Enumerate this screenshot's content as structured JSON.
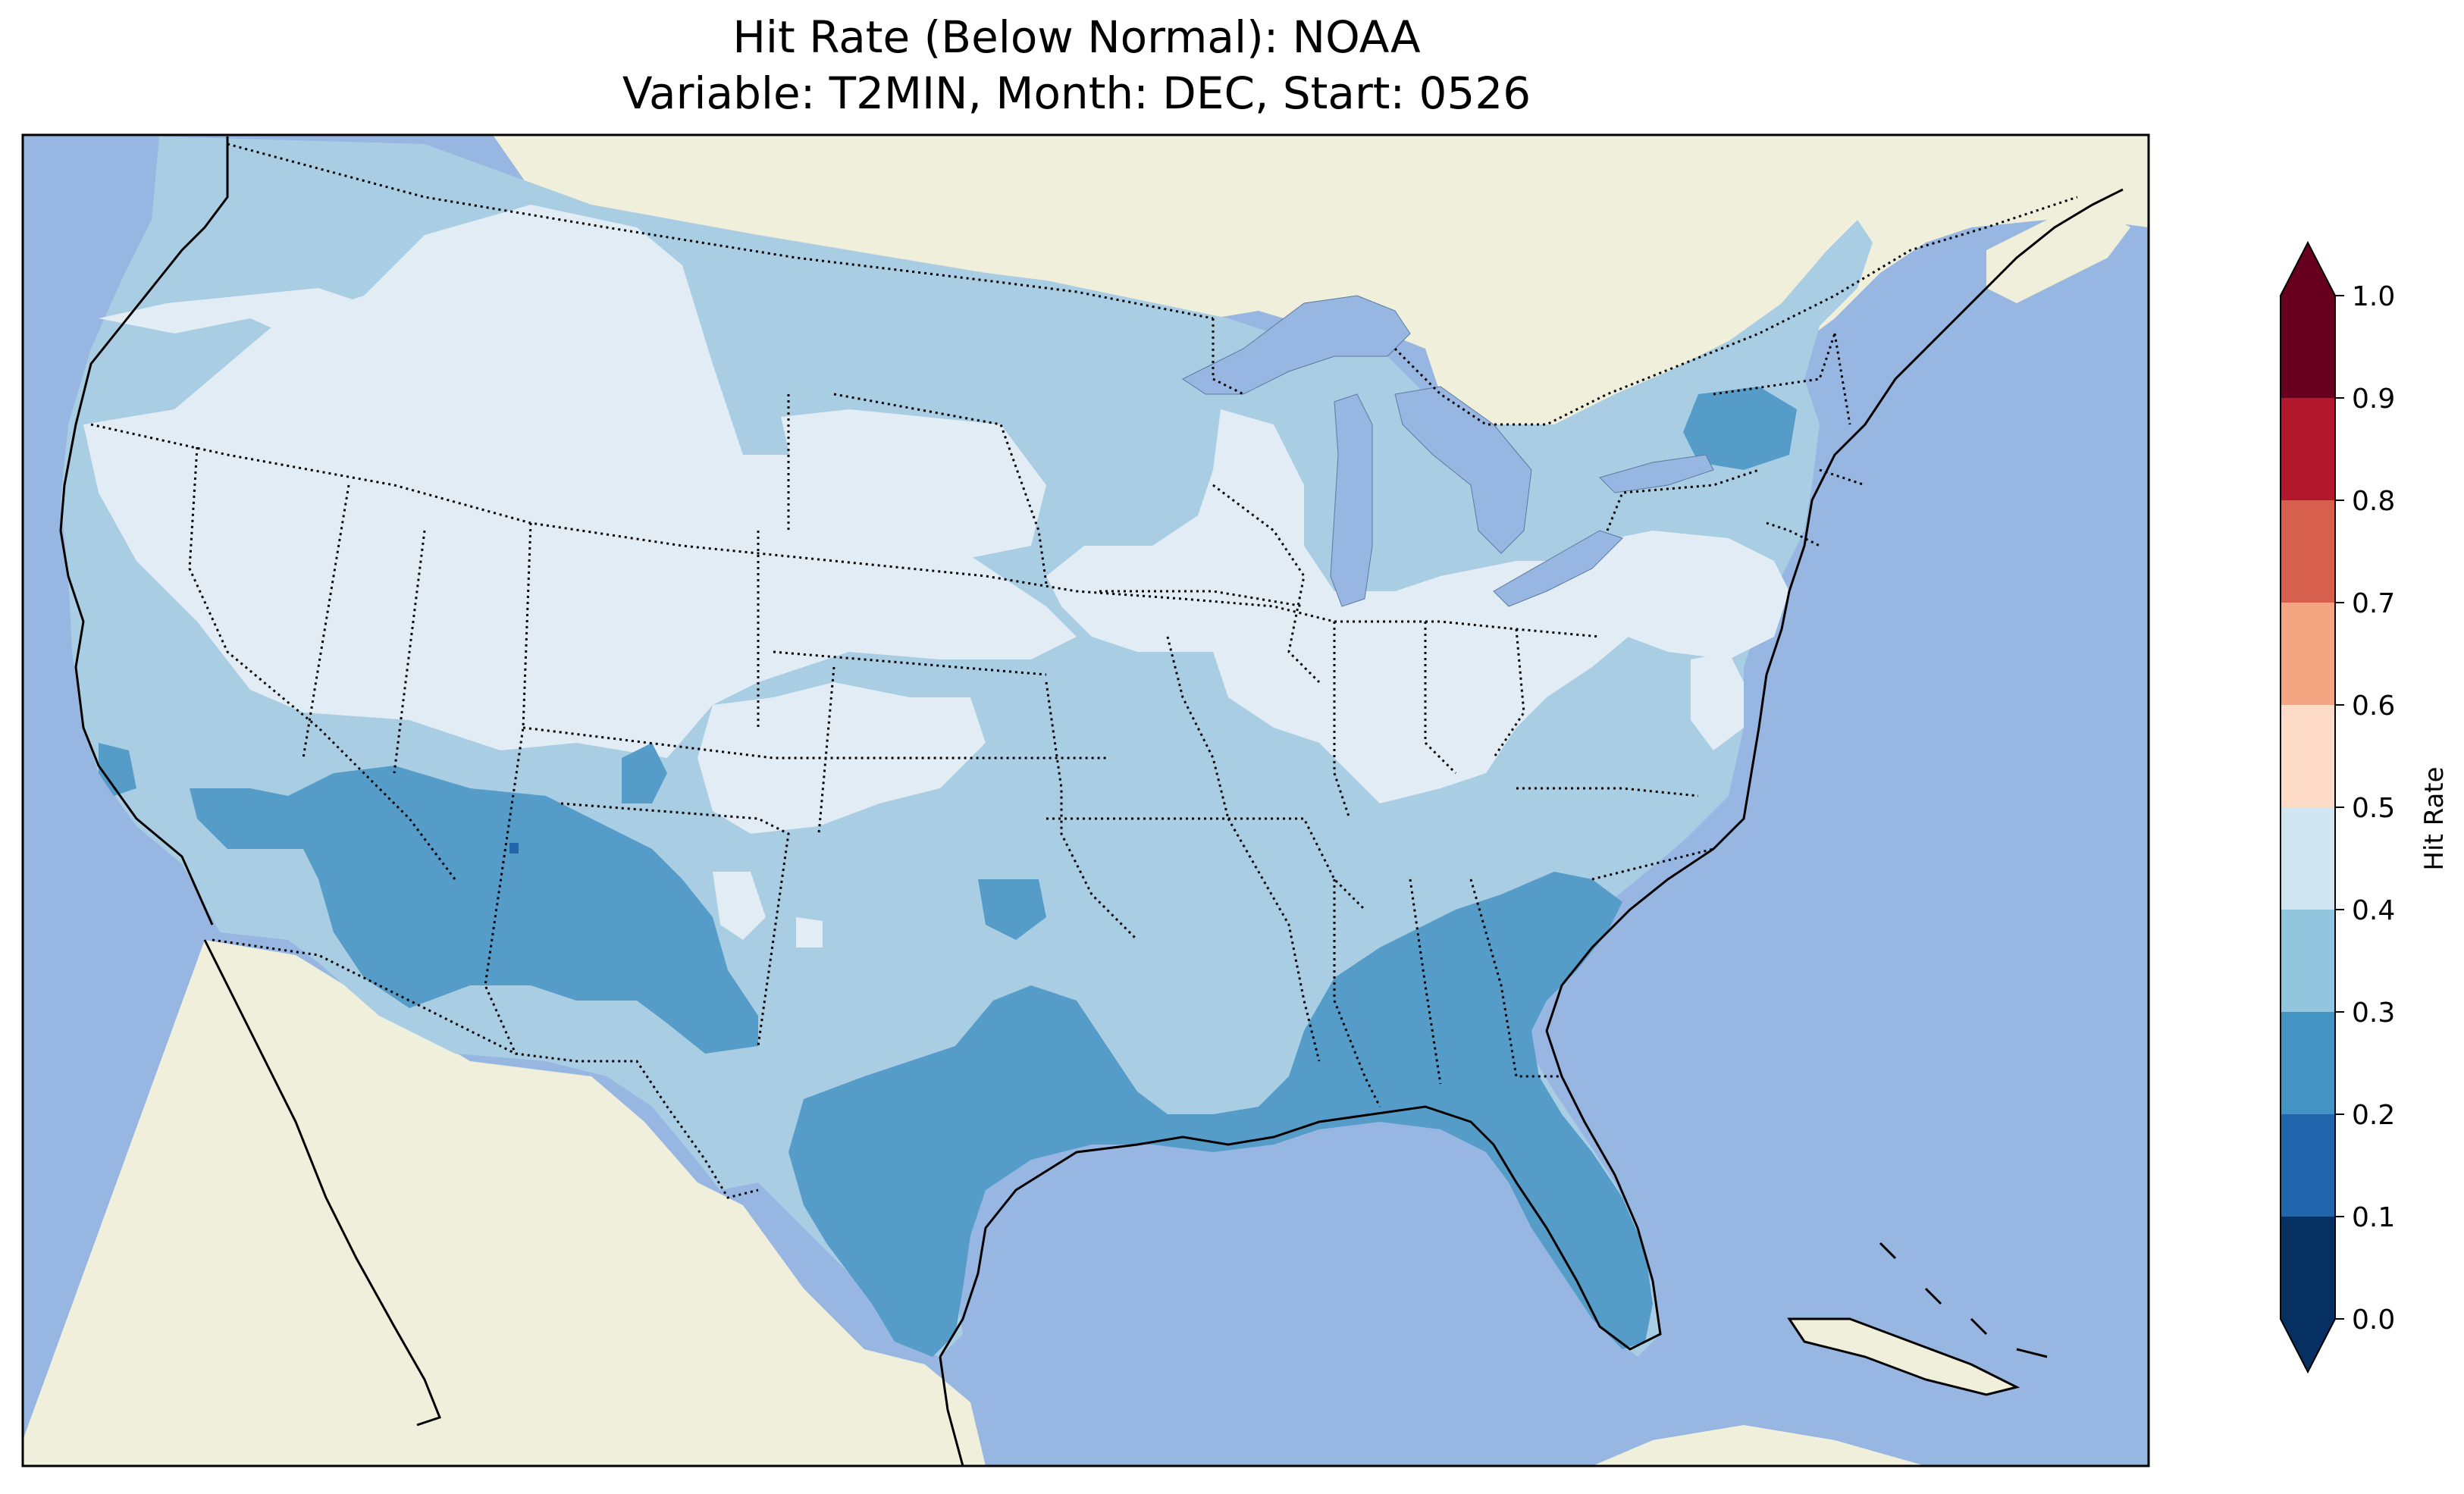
{
  "title": {
    "line1": "Hit Rate (Below Normal): NOAA",
    "line2": "Variable: T2MIN, Month: DEC, Start: 0526"
  },
  "colors": {
    "ocean": "#97b6e1",
    "land": "#efefdb",
    "lakes": "#97b6e1",
    "border": "#000000"
  },
  "colorbar": {
    "label": "Hit Rate",
    "ticks": [
      "0.0",
      "0.1",
      "0.2",
      "0.3",
      "0.4",
      "0.5",
      "0.6",
      "0.7",
      "0.8",
      "0.9",
      "1.0"
    ],
    "bins": [
      {
        "range": [
          0.0,
          0.1
        ],
        "color": "#053061"
      },
      {
        "range": [
          0.1,
          0.2
        ],
        "color": "#2166ac"
      },
      {
        "range": [
          0.2,
          0.3
        ],
        "color": "#4393c3"
      },
      {
        "range": [
          0.3,
          0.4
        ],
        "color": "#92c5de"
      },
      {
        "range": [
          0.4,
          0.5
        ],
        "color": "#d1e5f0"
      },
      {
        "range": [
          0.5,
          0.6
        ],
        "color": "#fddbc7"
      },
      {
        "range": [
          0.6,
          0.7
        ],
        "color": "#f4a582"
      },
      {
        "range": [
          0.7,
          0.8
        ],
        "color": "#d6604d"
      },
      {
        "range": [
          0.8,
          0.9
        ],
        "color": "#b2182b"
      },
      {
        "range": [
          0.9,
          1.0
        ],
        "color": "#67001f"
      }
    ],
    "under_color": "#053061",
    "over_color": "#67001f"
  }
}
